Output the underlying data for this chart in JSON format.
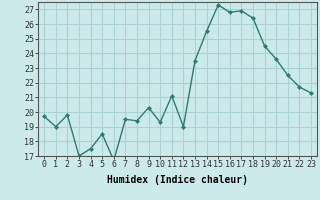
{
  "x": [
    0,
    1,
    2,
    3,
    4,
    5,
    6,
    7,
    8,
    9,
    10,
    11,
    12,
    13,
    14,
    15,
    16,
    17,
    18,
    19,
    20,
    21,
    22,
    23
  ],
  "y": [
    19.7,
    19.0,
    19.8,
    17.0,
    17.5,
    18.5,
    16.7,
    19.5,
    19.4,
    20.3,
    19.3,
    21.1,
    19.0,
    23.5,
    25.5,
    27.3,
    26.8,
    26.9,
    26.4,
    24.5,
    23.6,
    22.5,
    21.7,
    21.3
  ],
  "xlabel": "Humidex (Indice chaleur)",
  "ylim": [
    17,
    27.5
  ],
  "xlim": [
    -0.5,
    23.5
  ],
  "yticks": [
    17,
    18,
    19,
    20,
    21,
    22,
    23,
    24,
    25,
    26,
    27
  ],
  "xticks": [
    0,
    1,
    2,
    3,
    4,
    5,
    6,
    7,
    8,
    9,
    10,
    11,
    12,
    13,
    14,
    15,
    16,
    17,
    18,
    19,
    20,
    21,
    22,
    23
  ],
  "line_color": "#2e7d6e",
  "marker_size": 2.0,
  "line_width": 1.0,
  "bg_color": "#cceaea",
  "grid_color": "#aad4d4",
  "axis_label_fontsize": 7,
  "tick_fontsize": 6
}
